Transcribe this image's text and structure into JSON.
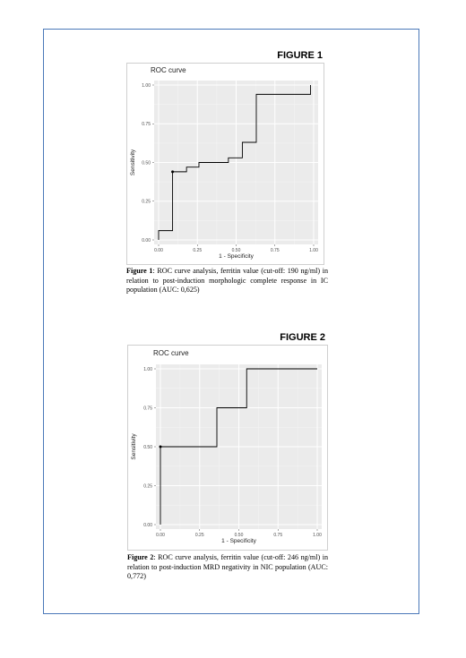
{
  "figures": [
    {
      "label": "FIGURE 1",
      "plot_title": "ROC curve",
      "caption_label": "Figure 1",
      "caption_text": ": ROC curve analysis, ferritin value (cut-off: 190 ng/ml) in relation to post-induction morphologic complete response in IC population (AUC: 0,625)"
    },
    {
      "label": "FIGURE 2",
      "plot_title": "ROC curve",
      "caption_label": "Figure 2",
      "caption_text": ": ROC curve analysis, ferritin value (cut-off: 246 ng/ml) in relation to post-induction MRD negativity in NIC population (AUC: 0,772)"
    }
  ],
  "chart_data": [
    {
      "type": "line",
      "title": "ROC curve",
      "xlabel": "1 - Specificity",
      "ylabel": "Sensitivity",
      "xlim": [
        0,
        1
      ],
      "ylim": [
        0,
        1
      ],
      "x_ticks": [
        "0.00",
        "0.25",
        "0.50",
        "0.75",
        "1.00"
      ],
      "y_ticks": [
        "0.00",
        "0.25",
        "0.50",
        "0.75",
        "1.00"
      ],
      "grid": true,
      "x": [
        0,
        0,
        0.09,
        0.09,
        0.18,
        0.18,
        0.26,
        0.26,
        0.45,
        0.45,
        0.54,
        0.54,
        0.63,
        0.63,
        0.98,
        0.98
      ],
      "y": [
        0,
        0.06,
        0.06,
        0.44,
        0.44,
        0.47,
        0.47,
        0.5,
        0.5,
        0.53,
        0.53,
        0.63,
        0.63,
        0.94,
        0.94,
        1.0
      ],
      "cutoff_point": {
        "x": 0.09,
        "y": 0.44
      }
    },
    {
      "type": "line",
      "title": "ROC curve",
      "xlabel": "1 - Specificity",
      "ylabel": "Sensitivity",
      "xlim": [
        0,
        1
      ],
      "ylim": [
        0,
        1
      ],
      "x_ticks": [
        "0.00",
        "0.25",
        "0.50",
        "0.75",
        "1.00"
      ],
      "y_ticks": [
        "0.00",
        "0.25",
        "0.50",
        "0.75",
        "1.00"
      ],
      "grid": true,
      "x": [
        0,
        0,
        0.36,
        0.36,
        0.55,
        0.55,
        1.0
      ],
      "y": [
        0,
        0.5,
        0.5,
        0.75,
        0.75,
        1.0,
        1.0
      ],
      "cutoff_point": {
        "x": 0,
        "y": 0.5
      }
    }
  ]
}
